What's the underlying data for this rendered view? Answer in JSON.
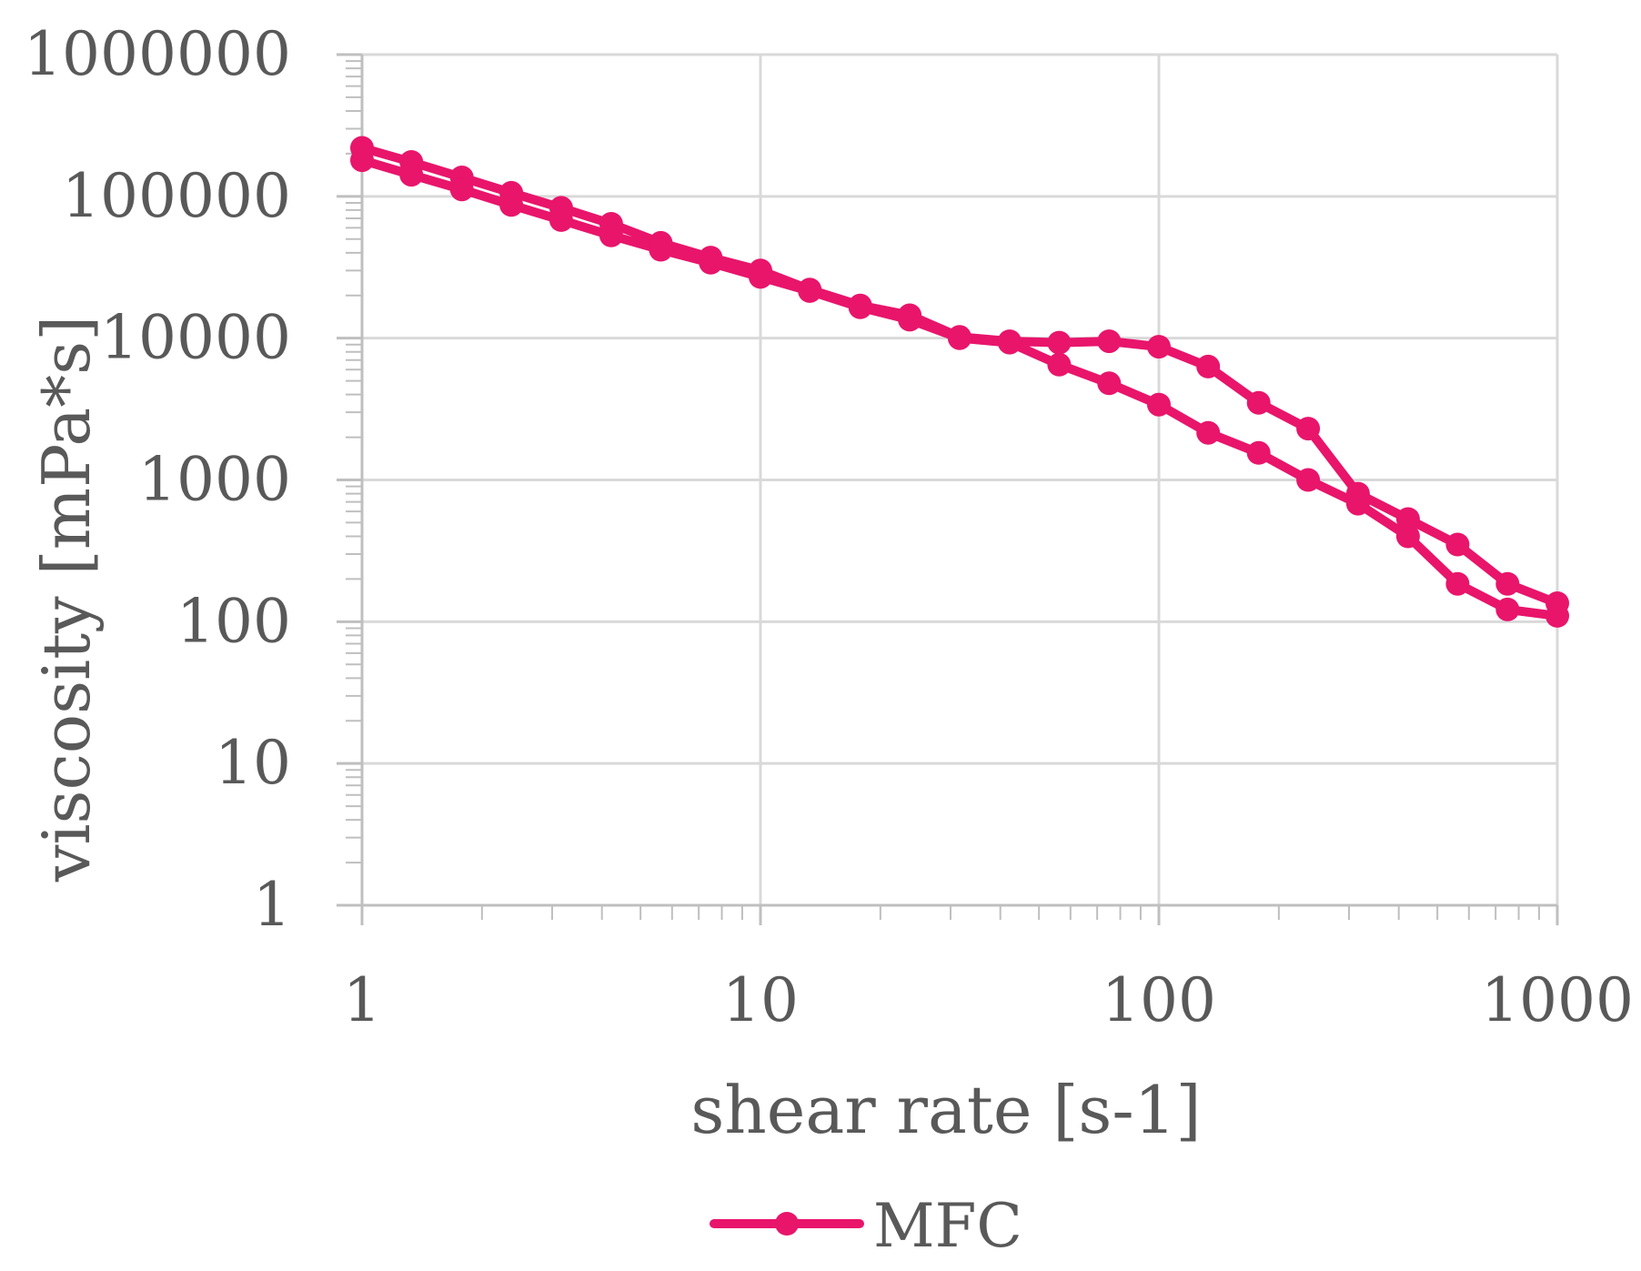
{
  "chart_data": {
    "type": "line",
    "xscale": "log",
    "yscale": "log",
    "xlim": [
      1,
      1000
    ],
    "ylim": [
      1,
      1000000
    ],
    "xlabel": "shear rate [s-1]",
    "ylabel": "viscosity [mPa*s]",
    "x_ticks": [
      "1",
      "10",
      "100",
      "1000"
    ],
    "y_ticks": [
      "1",
      "10",
      "100",
      "1000",
      "10000",
      "100000",
      "1000000"
    ],
    "grid": true,
    "legend_position": "bottom",
    "series": [
      {
        "name": "MFC",
        "color": "#e8156b",
        "marker": "circle",
        "points": [
          [
            1,
            220000
          ],
          [
            1.33,
            175000
          ],
          [
            1.78,
            136000
          ],
          [
            2.37,
            106000
          ],
          [
            3.16,
            83000
          ],
          [
            4.22,
            64000
          ],
          [
            5.62,
            47000
          ],
          [
            7.5,
            37000
          ],
          [
            10,
            30000
          ],
          [
            13.3,
            22000
          ],
          [
            17.8,
            17000
          ],
          [
            23.7,
            14500
          ],
          [
            31.6,
            10200
          ],
          [
            42.2,
            9500
          ],
          [
            56.2,
            9300
          ],
          [
            75,
            9500
          ],
          [
            100,
            8700
          ],
          [
            133,
            6300
          ],
          [
            178,
            3500
          ],
          [
            237,
            2300
          ],
          [
            316,
            800
          ],
          [
            422,
            530
          ],
          [
            562,
            350
          ],
          [
            750,
            185
          ],
          [
            1000,
            135
          ],
          [
            1000,
            110
          ],
          [
            750,
            122
          ],
          [
            562,
            185
          ],
          [
            422,
            400
          ],
          [
            316,
            680
          ],
          [
            237,
            1000
          ],
          [
            178,
            1550
          ],
          [
            133,
            2150
          ],
          [
            100,
            3400
          ],
          [
            75,
            4800
          ],
          [
            56.2,
            6500
          ],
          [
            42.2,
            9300
          ],
          [
            31.6,
            10000
          ],
          [
            23.7,
            13500
          ],
          [
            17.8,
            16500
          ],
          [
            13.3,
            21500
          ],
          [
            10,
            27000
          ],
          [
            7.5,
            34000
          ],
          [
            5.62,
            42000
          ],
          [
            4.22,
            53000
          ],
          [
            3.16,
            68000
          ],
          [
            2.37,
            87000
          ],
          [
            1.78,
            112000
          ],
          [
            1.33,
            142000
          ],
          [
            1,
            180000
          ]
        ]
      }
    ]
  }
}
